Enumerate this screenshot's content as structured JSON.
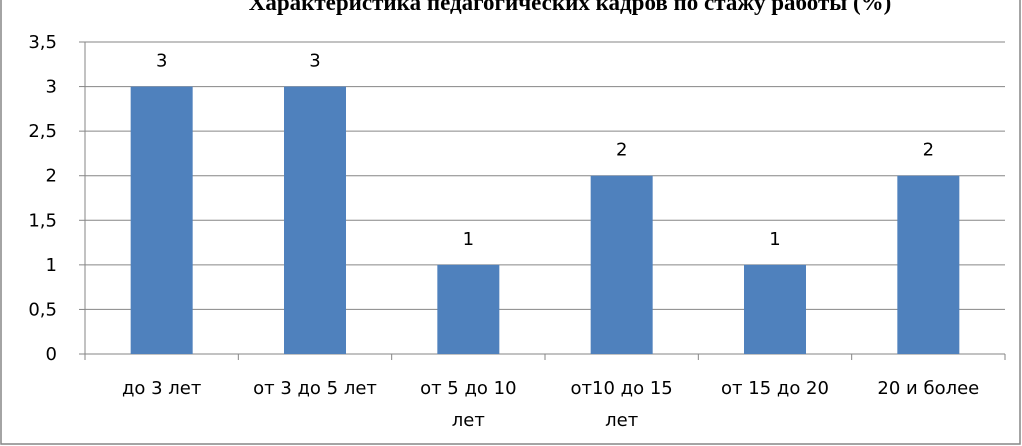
{
  "chart_data": {
    "type": "bar",
    "title": "Характеристика педагогических кадров по стажу работы (%)",
    "categories": [
      [
        "до 3 лет"
      ],
      [
        "от 3 до 5 лет"
      ],
      [
        "от 5 до 10",
        "лет"
      ],
      [
        "от10 до 15",
        "лет"
      ],
      [
        "от 15 до 20"
      ],
      [
        "20 и более"
      ]
    ],
    "values": [
      3,
      3,
      1,
      2,
      1,
      2
    ],
    "data_labels": [
      "3",
      "3",
      "1",
      "2",
      "1",
      "2"
    ],
    "ylim": [
      0,
      3.5
    ],
    "yticks": [
      0,
      0.5,
      1,
      1.5,
      2,
      2.5,
      3,
      3.5
    ],
    "ytick_labels": [
      "0",
      "0,5",
      "1",
      "1,5",
      "2",
      "2,5",
      "3",
      "3,5"
    ],
    "grid": true,
    "legend": "none",
    "colors": {
      "bar": "#4f81bd",
      "grid": "#868686",
      "axis": "#868686",
      "frame": "#868686"
    }
  }
}
